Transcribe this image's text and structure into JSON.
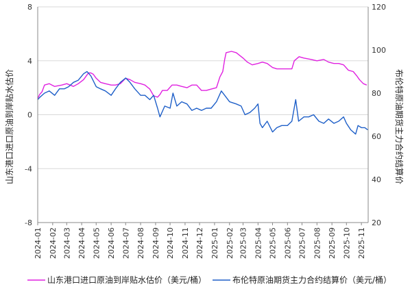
{
  "chart_data": {
    "type": "line",
    "ylabel_left": "山东港口进口原油到岸贴水估价",
    "ylabel_right": "布伦特原油期货主力合约结算价",
    "ylim_left": [
      -8,
      8
    ],
    "ylim_right": [
      20,
      120
    ],
    "yticks_left": [
      "8",
      "4",
      "0",
      "-4",
      "-8"
    ],
    "yticks_right": [
      "120",
      "100",
      "80",
      "60",
      "40",
      "20"
    ],
    "xticks": [
      "2024-01",
      "2024-02",
      "2024-03",
      "2024-04",
      "2024-05",
      "2024-06",
      "2024-07",
      "2024-08",
      "2024-09",
      "2024-10",
      "2024-11",
      "2024-12",
      "2025-01",
      "2025-02",
      "2025-03",
      "2025-04",
      "2025-05",
      "2025-06",
      "2025-07",
      "2025-08",
      "2025-09",
      "2025-10",
      "2025-11"
    ],
    "x_start": "2024-01-01",
    "x_end": "2025-11-15",
    "grid": true,
    "legend_placement": "bottom",
    "series": [
      {
        "name": "山东港口进口原油到岸贴水估价（美元/桶）",
        "axis": "left",
        "color": "#e020e0",
        "points": [
          [
            "2024-01-01",
            1.2
          ],
          [
            "2024-01-05",
            1.5
          ],
          [
            "2024-01-10",
            1.7
          ],
          [
            "2024-01-15",
            2.2
          ],
          [
            "2024-01-25",
            2.3
          ],
          [
            "2024-02-05",
            2.1
          ],
          [
            "2024-02-20",
            2.2
          ],
          [
            "2024-03-01",
            2.3
          ],
          [
            "2024-03-15",
            2.1
          ],
          [
            "2024-03-25",
            2.3
          ],
          [
            "2024-04-05",
            2.6
          ],
          [
            "2024-04-15",
            3.1
          ],
          [
            "2024-04-20",
            3.1
          ],
          [
            "2024-04-25",
            3.0
          ],
          [
            "2024-05-01",
            2.7
          ],
          [
            "2024-05-10",
            2.4
          ],
          [
            "2024-05-20",
            2.3
          ],
          [
            "2024-06-01",
            2.2
          ],
          [
            "2024-06-10",
            2.2
          ],
          [
            "2024-06-20",
            2.3
          ],
          [
            "2024-07-01",
            2.7
          ],
          [
            "2024-07-10",
            2.6
          ],
          [
            "2024-07-20",
            2.4
          ],
          [
            "2024-08-01",
            2.3
          ],
          [
            "2024-08-10",
            2.2
          ],
          [
            "2024-08-20",
            1.9
          ],
          [
            "2024-08-28",
            1.4
          ],
          [
            "2024-09-05",
            1.3
          ],
          [
            "2024-09-10",
            1.5
          ],
          [
            "2024-09-15",
            1.8
          ],
          [
            "2024-09-25",
            1.8
          ],
          [
            "2024-10-05",
            2.2
          ],
          [
            "2024-10-15",
            2.2
          ],
          [
            "2024-10-25",
            2.1
          ],
          [
            "2024-11-05",
            2.0
          ],
          [
            "2024-11-15",
            2.2
          ],
          [
            "2024-11-25",
            2.2
          ],
          [
            "2024-12-05",
            1.8
          ],
          [
            "2024-12-15",
            1.8
          ],
          [
            "2024-12-25",
            1.9
          ],
          [
            "2025-01-05",
            2.0
          ],
          [
            "2025-01-12",
            2.8
          ],
          [
            "2025-01-18",
            3.2
          ],
          [
            "2025-01-22",
            4.1
          ],
          [
            "2025-01-25",
            4.6
          ],
          [
            "2025-02-05",
            4.7
          ],
          [
            "2025-02-15",
            4.6
          ],
          [
            "2025-02-22",
            4.4
          ],
          [
            "2025-03-01",
            4.2
          ],
          [
            "2025-03-10",
            3.9
          ],
          [
            "2025-03-20",
            3.7
          ],
          [
            "2025-04-01",
            3.8
          ],
          [
            "2025-04-10",
            3.9
          ],
          [
            "2025-04-20",
            3.8
          ],
          [
            "2025-05-01",
            3.5
          ],
          [
            "2025-05-10",
            3.4
          ],
          [
            "2025-05-20",
            3.4
          ],
          [
            "2025-06-01",
            3.4
          ],
          [
            "2025-06-10",
            3.4
          ],
          [
            "2025-06-15",
            4.0
          ],
          [
            "2025-06-25",
            4.3
          ],
          [
            "2025-07-05",
            4.2
          ],
          [
            "2025-07-20",
            4.1
          ],
          [
            "2025-08-01",
            4.0
          ],
          [
            "2025-08-15",
            4.1
          ],
          [
            "2025-08-25",
            3.9
          ],
          [
            "2025-09-05",
            3.8
          ],
          [
            "2025-09-15",
            3.8
          ],
          [
            "2025-09-25",
            3.7
          ],
          [
            "2025-10-05",
            3.3
          ],
          [
            "2025-10-15",
            3.2
          ],
          [
            "2025-10-22",
            2.9
          ],
          [
            "2025-10-28",
            2.6
          ],
          [
            "2025-11-05",
            2.3
          ],
          [
            "2025-11-12",
            2.2
          ]
        ]
      },
      {
        "name": "布伦特原油期货主力合约结算价（美元/桶）",
        "axis": "right",
        "color": "#1e5fc8",
        "points": [
          [
            "2024-01-01",
            77
          ],
          [
            "2024-01-05",
            78
          ],
          [
            "2024-01-15",
            80
          ],
          [
            "2024-01-25",
            81
          ],
          [
            "2024-02-05",
            79
          ],
          [
            "2024-02-15",
            82
          ],
          [
            "2024-02-25",
            82
          ],
          [
            "2024-03-05",
            83
          ],
          [
            "2024-03-15",
            85
          ],
          [
            "2024-03-25",
            86
          ],
          [
            "2024-04-05",
            89
          ],
          [
            "2024-04-12",
            90
          ],
          [
            "2024-04-20",
            88
          ],
          [
            "2024-05-01",
            83
          ],
          [
            "2024-05-10",
            82
          ],
          [
            "2024-05-20",
            81
          ],
          [
            "2024-06-01",
            79
          ],
          [
            "2024-06-10",
            82
          ],
          [
            "2024-06-20",
            85
          ],
          [
            "2024-07-01",
            87
          ],
          [
            "2024-07-10",
            85
          ],
          [
            "2024-07-20",
            82
          ],
          [
            "2024-08-01",
            79
          ],
          [
            "2024-08-10",
            79
          ],
          [
            "2024-08-20",
            77
          ],
          [
            "2024-08-28",
            79
          ],
          [
            "2024-09-05",
            73
          ],
          [
            "2024-09-10",
            69
          ],
          [
            "2024-09-20",
            74
          ],
          [
            "2024-10-01",
            73
          ],
          [
            "2024-10-07",
            80
          ],
          [
            "2024-10-15",
            74
          ],
          [
            "2024-10-25",
            76
          ],
          [
            "2024-11-05",
            75
          ],
          [
            "2024-11-15",
            72
          ],
          [
            "2024-11-25",
            73
          ],
          [
            "2024-12-05",
            72
          ],
          [
            "2024-12-15",
            73
          ],
          [
            "2024-12-25",
            73
          ],
          [
            "2025-01-05",
            76
          ],
          [
            "2025-01-15",
            81
          ],
          [
            "2025-01-22",
            79
          ],
          [
            "2025-02-01",
            76
          ],
          [
            "2025-02-15",
            75
          ],
          [
            "2025-02-25",
            74
          ],
          [
            "2025-03-05",
            70
          ],
          [
            "2025-03-15",
            71
          ],
          [
            "2025-03-25",
            73
          ],
          [
            "2025-04-01",
            75
          ],
          [
            "2025-04-05",
            66
          ],
          [
            "2025-04-10",
            64
          ],
          [
            "2025-04-20",
            67
          ],
          [
            "2025-05-01",
            62
          ],
          [
            "2025-05-10",
            64
          ],
          [
            "2025-05-20",
            65
          ],
          [
            "2025-06-01",
            65
          ],
          [
            "2025-06-10",
            67
          ],
          [
            "2025-06-18",
            77
          ],
          [
            "2025-06-24",
            67
          ],
          [
            "2025-07-05",
            69
          ],
          [
            "2025-07-15",
            69
          ],
          [
            "2025-07-25",
            70
          ],
          [
            "2025-08-05",
            67
          ],
          [
            "2025-08-15",
            66
          ],
          [
            "2025-08-25",
            68
          ],
          [
            "2025-09-05",
            66
          ],
          [
            "2025-09-15",
            67
          ],
          [
            "2025-09-25",
            69
          ],
          [
            "2025-10-01",
            66
          ],
          [
            "2025-10-10",
            63
          ],
          [
            "2025-10-20",
            61
          ],
          [
            "2025-10-25",
            65
          ],
          [
            "2025-11-01",
            64
          ],
          [
            "2025-11-08",
            64
          ],
          [
            "2025-11-14",
            63
          ]
        ]
      }
    ]
  }
}
